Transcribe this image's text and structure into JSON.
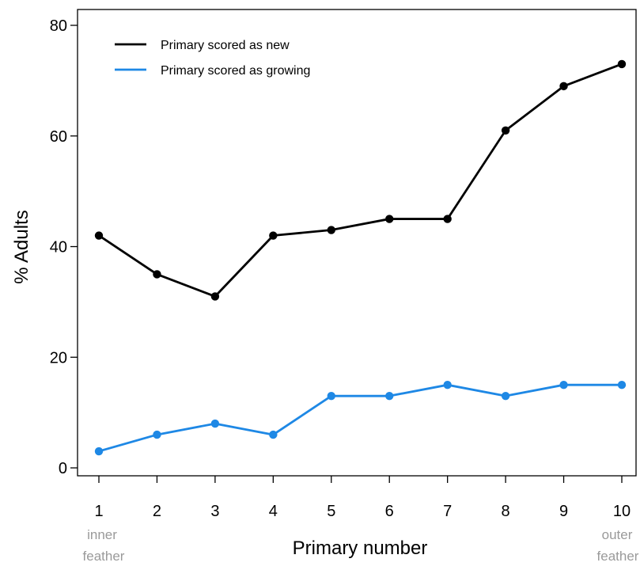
{
  "chart_data": {
    "type": "line",
    "title": "",
    "xlabel": "Primary number",
    "ylabel": "% Adults",
    "x": [
      1,
      2,
      3,
      4,
      5,
      6,
      7,
      8,
      9,
      10
    ],
    "xlim": [
      1,
      10
    ],
    "ylim": [
      0,
      80
    ],
    "yticks": [
      0,
      20,
      40,
      60,
      80
    ],
    "xticks": [
      1,
      2,
      3,
      4,
      5,
      6,
      7,
      8,
      9,
      10
    ],
    "x_annotations": {
      "left": [
        "inner",
        "feather"
      ],
      "right": [
        "outer",
        "feather"
      ]
    },
    "grid": false,
    "legend_position": "top-left",
    "series": [
      {
        "name": "Primary scored as new",
        "color": "#000000",
        "values": [
          42,
          35,
          31,
          42,
          43,
          45,
          45,
          61,
          69,
          73
        ]
      },
      {
        "name": "Primary scored as growing",
        "color": "#1e88e5",
        "values": [
          3,
          6,
          8,
          6,
          13,
          13,
          15,
          13,
          15,
          15
        ]
      }
    ]
  }
}
